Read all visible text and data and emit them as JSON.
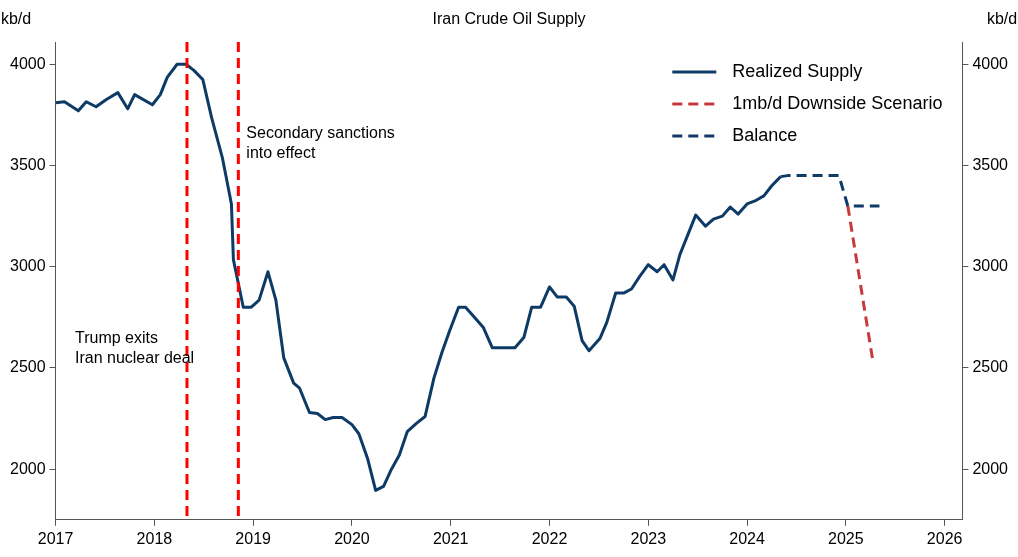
{
  "chart_data": {
    "type": "line",
    "title": "Iran Crude Oil Supply",
    "ylabel": "kb/d",
    "y2label": "kb/d",
    "xlim": [
      2017,
      2026.18
    ],
    "xticks": [
      2017,
      2018,
      2019,
      2020,
      2021,
      2022,
      2023,
      2024,
      2025,
      2026
    ],
    "ylim": [
      1750,
      4110
    ],
    "yticks": [
      2000,
      2500,
      3000,
      3500,
      4000
    ],
    "y2lim": [
      1750,
      4110
    ],
    "y2ticks": [
      2000,
      2500,
      3000,
      3500,
      4000
    ],
    "grid": false,
    "legend": "top right",
    "marker": "none",
    "series": [
      {
        "name": "Realized Supply",
        "color": "#0e3a66",
        "line_style": "solid",
        "x": [
          2017,
          2017.09,
          2017.23,
          2017.31,
          2017.41,
          2017.51,
          2017.63,
          2017.73,
          2017.8,
          2017.98,
          2018.06,
          2018.13,
          2018.23,
          2018.32,
          2018.4,
          2018.49,
          2018.58,
          2018.69,
          2018.78,
          2018.8,
          2018.9,
          2018.98,
          2019.06,
          2019.15,
          2019.23,
          2019.31,
          2019.41,
          2019.47,
          2019.57,
          2019.65,
          2019.73,
          2019.81,
          2019.9,
          2020,
          2020.07,
          2020.16,
          2020.24,
          2020.32,
          2020.4,
          2020.48,
          2020.56,
          2020.65,
          2020.74,
          2020.83,
          2020.91,
          2020.99,
          2021.08,
          2021.15,
          2021.24,
          2021.33,
          2021.42,
          2021.65,
          2021.74,
          2021.82,
          2021.91,
          2022,
          2022.08,
          2022.17,
          2022.25,
          2022.33,
          2022.4,
          2022.51,
          2022.58,
          2022.67,
          2022.75,
          2022.83,
          2022.91,
          2023,
          2023.09,
          2023.16,
          2023.25,
          2023.32,
          2023.48,
          2023.58,
          2023.66,
          2023.75,
          2023.83,
          2023.91,
          2024,
          2024.08,
          2024.17,
          2024.25,
          2024.34
        ],
        "values": [
          3810,
          3815,
          3770,
          3815,
          3790,
          3825,
          3860,
          3780,
          3850,
          3800,
          3850,
          3935,
          4000,
          4000,
          3970,
          3925,
          3735,
          3535,
          3310,
          3035,
          2800,
          2800,
          2835,
          2975,
          2835,
          2550,
          2425,
          2400,
          2280,
          2275,
          2245,
          2255,
          2255,
          2220,
          2175,
          2050,
          1895,
          1915,
          2000,
          2070,
          2185,
          2225,
          2260,
          2450,
          2575,
          2685,
          2800,
          2800,
          2750,
          2700,
          2600,
          2600,
          2650,
          2800,
          2800,
          2900,
          2850,
          2850,
          2805,
          2635,
          2585,
          2645,
          2725,
          2870,
          2870,
          2890,
          2950,
          3010,
          2975,
          3010,
          2935,
          3060,
          3255,
          3200,
          3235,
          3250,
          3295,
          3260,
          3310,
          3325,
          3350,
          3400,
          3445
        ]
      },
      {
        "name": "1mb/d Downside Scenario",
        "color": "#c8393b",
        "line_style": "dashed",
        "x": [
          2025.02,
          2025.27
        ],
        "values": [
          3300,
          2545
        ]
      },
      {
        "name": "Balance",
        "color": "#0e3a66",
        "line_style": "dashed",
        "x": [
          2024.34,
          2024.41,
          2024.93,
          2025.02,
          2025.34
        ],
        "values": [
          3445,
          3450,
          3450,
          3300,
          3300
        ]
      }
    ],
    "ref_lines": [
      {
        "axis": "x",
        "value": 2018.33,
        "color": "#ff0000",
        "line_style": "dashed",
        "label": "Trump exits\nIran nuclear deal"
      },
      {
        "axis": "x",
        "value": 2018.85,
        "color": "#ff0000",
        "line_style": "dashed",
        "label": "Secondary sanctions\ninto effect"
      }
    ]
  }
}
